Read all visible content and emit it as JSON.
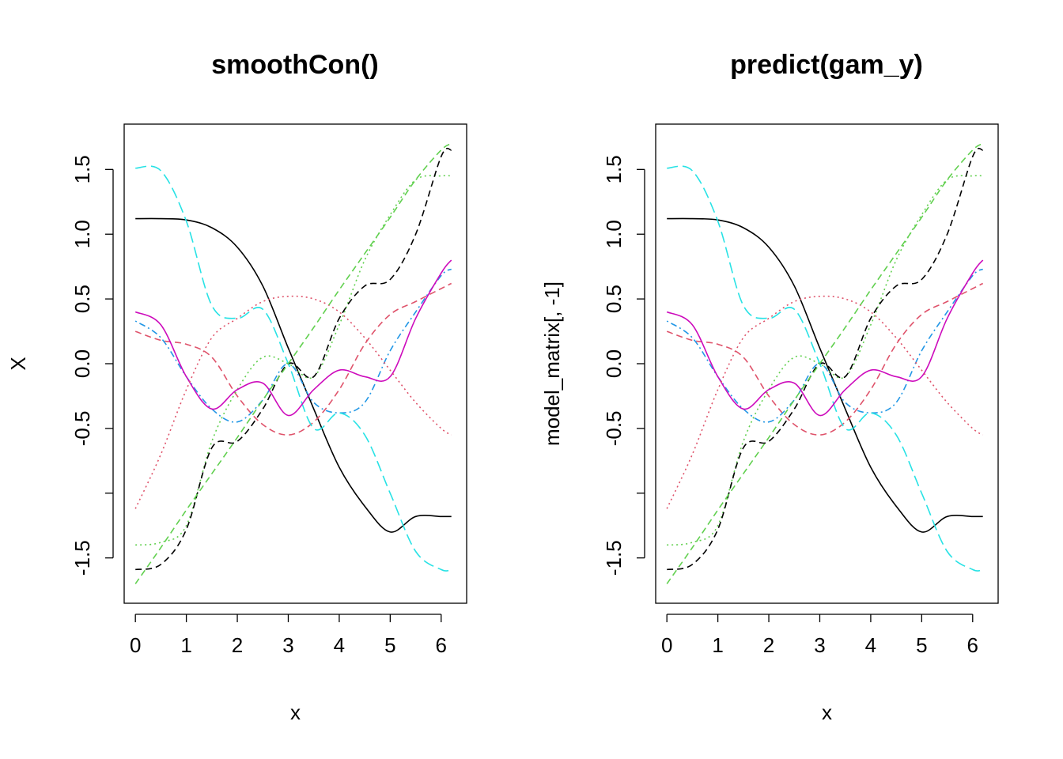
{
  "chart_data": [
    {
      "type": "line",
      "title": "smoothCon()",
      "xlabel": "x",
      "ylabel": "X",
      "xlim": [
        -0.22,
        6.5
      ],
      "ylim": [
        -1.85,
        1.85
      ],
      "xticks": [
        0,
        1,
        2,
        3,
        4,
        5,
        6
      ],
      "yticks": [
        -1.5,
        -1.0,
        -0.5,
        0.0,
        0.5,
        1.0,
        1.5
      ],
      "ytick_labels": [
        "-1.5",
        "",
        "-0.5",
        "0.0",
        "0.5",
        "1.0",
        "1.5"
      ],
      "x": [
        0,
        0.5,
        1,
        1.5,
        2,
        2.5,
        3,
        3.5,
        4,
        4.5,
        5,
        5.5,
        6,
        6.2
      ],
      "series": [
        {
          "color": "#000000",
          "dash": "solid",
          "values": [
            1.12,
            1.12,
            1.11,
            1.05,
            0.9,
            0.6,
            0.12,
            -0.35,
            -0.8,
            -1.1,
            -1.3,
            -1.18,
            -1.18,
            -1.18
          ]
        },
        {
          "color": "#DF536B",
          "dash": "dashed",
          "values": [
            0.25,
            0.18,
            0.15,
            0.05,
            -0.25,
            -0.47,
            -0.55,
            -0.45,
            -0.2,
            0.15,
            0.38,
            0.48,
            0.58,
            0.62
          ]
        },
        {
          "color": "#61D04F",
          "dash": "dotted",
          "values": [
            -1.4,
            -1.38,
            -1.25,
            -0.6,
            -0.2,
            0.05,
            0.0,
            -0.1,
            0.3,
            0.8,
            1.15,
            1.42,
            1.45,
            1.45
          ]
        },
        {
          "color": "#2297E6",
          "dash": "dotdash",
          "values": [
            0.33,
            0.2,
            -0.1,
            -0.35,
            -0.45,
            -0.28,
            0.0,
            -0.3,
            -0.38,
            -0.3,
            0.1,
            0.4,
            0.68,
            0.73
          ]
        },
        {
          "color": "#28E2E5",
          "dash": "longdash",
          "values": [
            1.51,
            1.49,
            1.1,
            0.45,
            0.35,
            0.42,
            0.0,
            -0.5,
            -0.38,
            -0.55,
            -1.0,
            -1.45,
            -1.59,
            -1.59
          ]
        },
        {
          "color": "#CD0BBC",
          "dash": "solid",
          "values": [
            0.4,
            0.3,
            -0.1,
            -0.35,
            -0.2,
            -0.15,
            -0.4,
            -0.2,
            -0.05,
            -0.1,
            -0.1,
            0.35,
            0.7,
            0.8
          ]
        },
        {
          "color": "#000000",
          "dash": "dashed",
          "values": [
            -1.59,
            -1.55,
            -1.28,
            -0.65,
            -0.6,
            -0.35,
            0.0,
            -0.1,
            0.35,
            0.6,
            0.65,
            1.0,
            1.6,
            1.65
          ]
        },
        {
          "color": "#DF536B",
          "dash": "dotted",
          "values": [
            -1.12,
            -0.7,
            -0.2,
            0.2,
            0.35,
            0.48,
            0.52,
            0.5,
            0.4,
            0.2,
            -0.05,
            -0.3,
            -0.5,
            -0.55
          ]
        },
        {
          "color": "#61D04F",
          "dash": "dashed",
          "values": [
            -1.7,
            -1.42,
            -1.13,
            -0.85,
            -0.57,
            -0.28,
            0.0,
            0.28,
            0.57,
            0.85,
            1.13,
            1.42,
            1.65,
            1.7
          ]
        }
      ]
    },
    {
      "type": "line",
      "title": "predict(gam_y)",
      "xlabel": "x",
      "ylabel": "model_matrix[, -1]",
      "xlim": [
        -0.22,
        6.5
      ],
      "ylim": [
        -1.85,
        1.85
      ],
      "xticks": [
        0,
        1,
        2,
        3,
        4,
        5,
        6
      ],
      "yticks": [
        -1.5,
        -1.0,
        -0.5,
        0.0,
        0.5,
        1.0,
        1.5
      ],
      "ytick_labels": [
        "-1.5",
        "",
        "-0.5",
        "0.0",
        "0.5",
        "1.0",
        "1.5"
      ],
      "x": [
        0,
        0.5,
        1,
        1.5,
        2,
        2.5,
        3,
        3.5,
        4,
        4.5,
        5,
        5.5,
        6,
        6.2
      ],
      "series": [
        {
          "color": "#000000",
          "dash": "solid",
          "values": [
            1.12,
            1.12,
            1.11,
            1.05,
            0.9,
            0.6,
            0.12,
            -0.35,
            -0.8,
            -1.1,
            -1.3,
            -1.18,
            -1.18,
            -1.18
          ]
        },
        {
          "color": "#DF536B",
          "dash": "dashed",
          "values": [
            0.25,
            0.18,
            0.15,
            0.05,
            -0.25,
            -0.47,
            -0.55,
            -0.45,
            -0.2,
            0.15,
            0.38,
            0.48,
            0.58,
            0.62
          ]
        },
        {
          "color": "#61D04F",
          "dash": "dotted",
          "values": [
            -1.4,
            -1.38,
            -1.25,
            -0.6,
            -0.2,
            0.05,
            0.0,
            -0.1,
            0.3,
            0.8,
            1.15,
            1.42,
            1.45,
            1.45
          ]
        },
        {
          "color": "#2297E6",
          "dash": "dotdash",
          "values": [
            0.33,
            0.2,
            -0.1,
            -0.35,
            -0.45,
            -0.28,
            0.0,
            -0.3,
            -0.38,
            -0.3,
            0.1,
            0.4,
            0.68,
            0.73
          ]
        },
        {
          "color": "#28E2E5",
          "dash": "longdash",
          "values": [
            1.51,
            1.49,
            1.1,
            0.45,
            0.35,
            0.42,
            0.0,
            -0.5,
            -0.38,
            -0.55,
            -1.0,
            -1.45,
            -1.59,
            -1.59
          ]
        },
        {
          "color": "#CD0BBC",
          "dash": "solid",
          "values": [
            0.4,
            0.3,
            -0.1,
            -0.35,
            -0.2,
            -0.15,
            -0.4,
            -0.2,
            -0.05,
            -0.1,
            -0.1,
            0.35,
            0.7,
            0.8
          ]
        },
        {
          "color": "#000000",
          "dash": "dashed",
          "values": [
            -1.59,
            -1.55,
            -1.28,
            -0.65,
            -0.6,
            -0.35,
            0.0,
            -0.1,
            0.35,
            0.6,
            0.65,
            1.0,
            1.6,
            1.65
          ]
        },
        {
          "color": "#DF536B",
          "dash": "dotted",
          "values": [
            -1.12,
            -0.7,
            -0.2,
            0.2,
            0.35,
            0.48,
            0.52,
            0.5,
            0.4,
            0.2,
            -0.05,
            -0.3,
            -0.5,
            -0.55
          ]
        },
        {
          "color": "#61D04F",
          "dash": "dashed",
          "values": [
            -1.7,
            -1.42,
            -1.13,
            -0.85,
            -0.57,
            -0.28,
            0.0,
            0.28,
            0.57,
            0.85,
            1.13,
            1.42,
            1.65,
            1.7
          ]
        }
      ]
    }
  ]
}
